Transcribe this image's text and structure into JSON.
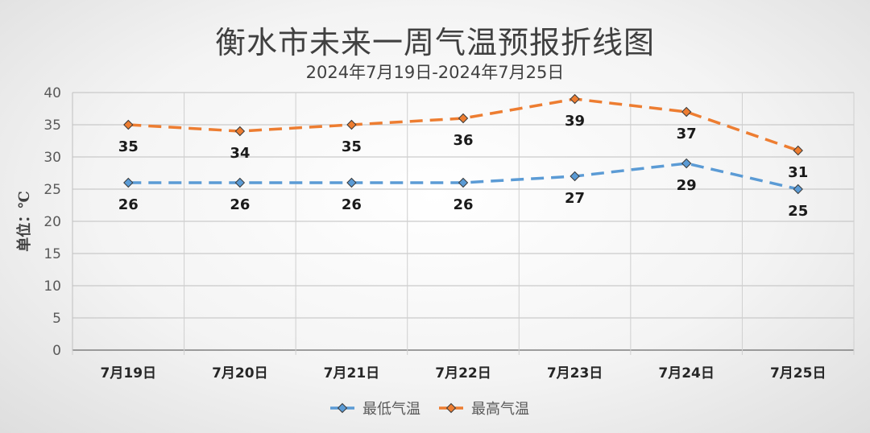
{
  "chart_data": {
    "type": "line",
    "title": "衡水市未来一周气温预报折线图",
    "subtitle": "2024年7月19日-2024年7月25日",
    "ylabel": "单位：℃",
    "xlabel": "",
    "categories": [
      "7月19日",
      "7月20日",
      "7月21日",
      "7月22日",
      "7月23日",
      "7月24日",
      "7月25日"
    ],
    "ylim": [
      0,
      40
    ],
    "yticks": [
      0,
      5,
      10,
      15,
      20,
      25,
      30,
      35,
      40
    ],
    "grid": true,
    "legend_position": "bottom",
    "series": [
      {
        "name": "最低气温",
        "values": [
          26,
          26,
          26,
          26,
          27,
          29,
          25
        ],
        "color": "#5b9bd5"
      },
      {
        "name": "最高气温",
        "values": [
          35,
          34,
          35,
          36,
          39,
          37,
          31
        ],
        "color": "#ed7d31"
      }
    ]
  }
}
